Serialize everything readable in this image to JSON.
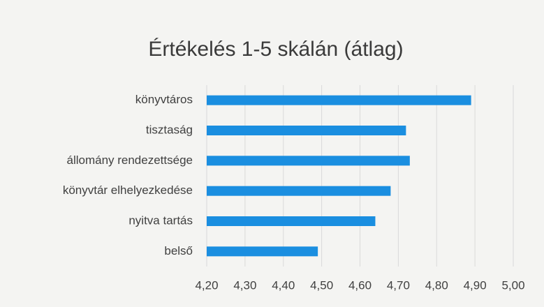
{
  "chart_data": {
    "type": "bar",
    "orientation": "horizontal",
    "title": "Értékelés 1-5 skálán (átlag)",
    "categories": [
      "könyvtáros",
      "tisztaság",
      "állomány rendezettsége",
      "könyvtár elhelyezkedése",
      "nyitva tartás",
      "belső"
    ],
    "values": [
      4.89,
      4.72,
      4.73,
      4.68,
      4.64,
      4.49
    ],
    "color": "#1a8ee0",
    "xlim": [
      4.2,
      5.0
    ],
    "xticks": [
      {
        "value": 4.2,
        "label": "4,20"
      },
      {
        "value": 4.3,
        "label": "4,30"
      },
      {
        "value": 4.4,
        "label": "4,40"
      },
      {
        "value": 4.5,
        "label": "4,50"
      },
      {
        "value": 4.6,
        "label": "4,60"
      },
      {
        "value": 4.7,
        "label": "4,70"
      },
      {
        "value": 4.8,
        "label": "4,80"
      },
      {
        "value": 4.9,
        "label": "4,90"
      },
      {
        "value": 5.0,
        "label": "5,00"
      }
    ],
    "grid": true
  }
}
